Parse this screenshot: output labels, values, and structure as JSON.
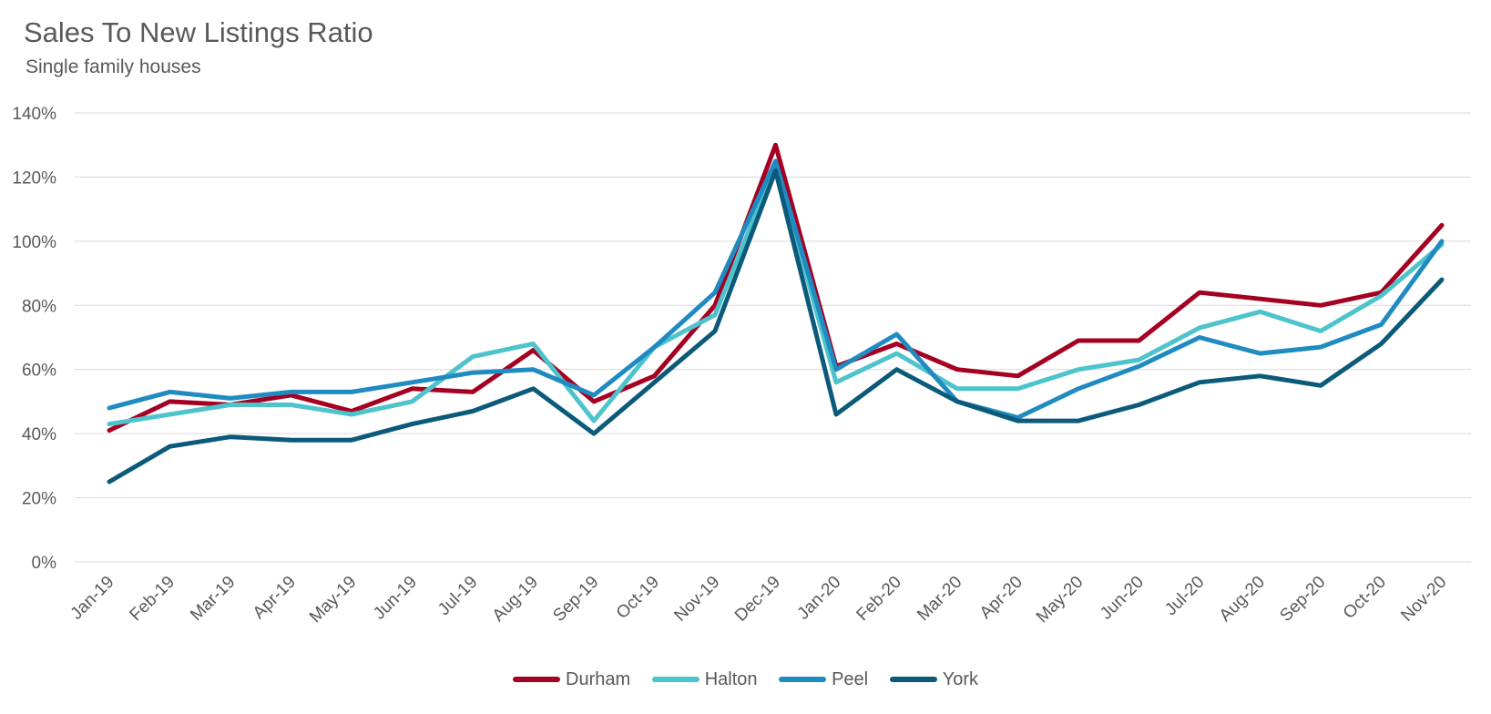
{
  "chart_data": {
    "type": "line",
    "title": "Sales To New Listings Ratio",
    "subtitle": "Single family houses",
    "xlabel": "",
    "ylabel": "",
    "ylim": [
      0,
      140
    ],
    "y_ticks": [
      0,
      20,
      40,
      60,
      80,
      100,
      120,
      140
    ],
    "y_tick_labels": [
      "0%",
      "20%",
      "40%",
      "60%",
      "80%",
      "100%",
      "120%",
      "140%"
    ],
    "grid": true,
    "legend_position": "bottom-center",
    "categories": [
      "Jan-19",
      "Feb-19",
      "Mar-19",
      "Apr-19",
      "May-19",
      "Jun-19",
      "Jul-19",
      "Aug-19",
      "Sep-19",
      "Oct-19",
      "Nov-19",
      "Dec-19",
      "Jan-20",
      "Feb-20",
      "Mar-20",
      "Apr-20",
      "May-20",
      "Jun-20",
      "Jul-20",
      "Aug-20",
      "Sep-20",
      "Oct-20",
      "Nov-20"
    ],
    "series": [
      {
        "name": "Durham",
        "color": "#a50021",
        "values": [
          41,
          50,
          49,
          52,
          47,
          54,
          53,
          66,
          50,
          58,
          80,
          130,
          61,
          68,
          60,
          58,
          69,
          69,
          84,
          82,
          80,
          84,
          105
        ]
      },
      {
        "name": "Halton",
        "color": "#4dc3cc",
        "values": [
          43,
          46,
          49,
          49,
          46,
          50,
          64,
          68,
          44,
          67,
          77,
          124,
          56,
          65,
          54,
          54,
          60,
          63,
          73,
          78,
          72,
          83,
          99
        ]
      },
      {
        "name": "Peel",
        "color": "#1f8bc0",
        "values": [
          48,
          53,
          51,
          53,
          53,
          56,
          59,
          60,
          52,
          67,
          84,
          125,
          60,
          71,
          50,
          45,
          54,
          61,
          70,
          65,
          67,
          74,
          100
        ]
      },
      {
        "name": "York",
        "color": "#0b5a7a",
        "values": [
          25,
          36,
          39,
          38,
          38,
          43,
          47,
          54,
          40,
          56,
          72,
          122,
          46,
          60,
          50,
          44,
          44,
          49,
          56,
          58,
          55,
          68,
          88
        ]
      }
    ]
  }
}
